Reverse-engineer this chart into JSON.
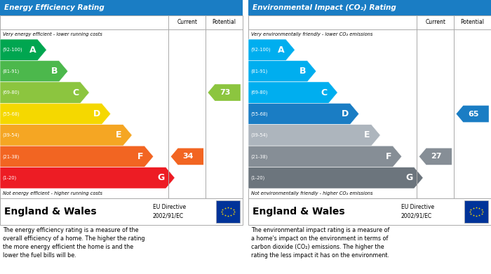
{
  "left_title": "Energy Efficiency Rating",
  "right_title": "Environmental Impact (CO₂) Rating",
  "header_bg": "#1a7dc4",
  "bands_left": [
    {
      "label": "A",
      "range": "(92-100)",
      "color": "#00a650"
    },
    {
      "label": "B",
      "range": "(81-91)",
      "color": "#4cb84c"
    },
    {
      "label": "C",
      "range": "(69-80)",
      "color": "#8cc53f"
    },
    {
      "label": "D",
      "range": "(55-68)",
      "color": "#f5d800"
    },
    {
      "label": "E",
      "range": "(39-54)",
      "color": "#f5a623"
    },
    {
      "label": "F",
      "range": "(21-38)",
      "color": "#f26522"
    },
    {
      "label": "G",
      "range": "(1-20)",
      "color": "#ed1c24"
    }
  ],
  "bands_right": [
    {
      "label": "A",
      "range": "(92-100)",
      "color": "#00aeef"
    },
    {
      "label": "B",
      "range": "(81-91)",
      "color": "#00aeef"
    },
    {
      "label": "C",
      "range": "(69-80)",
      "color": "#00aeef"
    },
    {
      "label": "D",
      "range": "(55-68)",
      "color": "#1a7dc4"
    },
    {
      "label": "E",
      "range": "(39-54)",
      "color": "#adb5bd"
    },
    {
      "label": "F",
      "range": "(21-38)",
      "color": "#868e96"
    },
    {
      "label": "G",
      "range": "(1-20)",
      "color": "#6c757d"
    }
  ],
  "left_current_arrow": {
    "value": 34,
    "row": 5,
    "color": "#f26522"
  },
  "left_potential_arrow": {
    "value": 73,
    "row": 2,
    "color": "#8cc53f"
  },
  "right_current_arrow": {
    "value": 27,
    "row": 5,
    "color": "#868e96"
  },
  "right_potential_arrow": {
    "value": 65,
    "row": 3,
    "color": "#1a7dc4"
  },
  "left_top_note": "Very energy efficient - lower running costs",
  "left_bot_note": "Not energy efficient - higher running costs",
  "right_top_note": "Very environmentally friendly - lower CO₂ emissions",
  "right_bot_note": "Not environmentally friendly - higher CO₂ emissions",
  "footer_main": "England & Wales",
  "footer_sub": "EU Directive\n2002/91/EC",
  "left_desc": "The energy efficiency rating is a measure of the\noverall efficiency of a home. The higher the rating\nthe more energy efficient the home is and the\nlower the fuel bills will be.",
  "right_desc": "The environmental impact rating is a measure of\na home's impact on the environment in terms of\ncarbon dioxide (CO₂) emissions. The higher the\nrating the less impact it has on the environment.",
  "col_current": "Current",
  "col_potential": "Potential"
}
